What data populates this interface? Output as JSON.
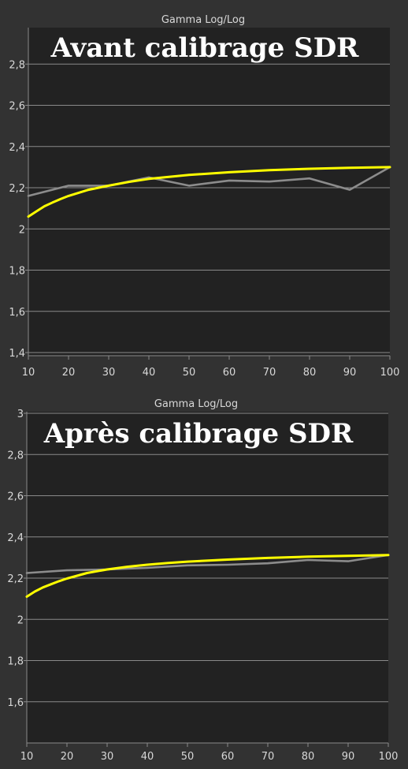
{
  "colors": {
    "background": "#323232",
    "plot_background": "#222222",
    "grid": "#8a8a8a",
    "target_curve": "#ffff00",
    "measured_curve": "#8c8c8c",
    "text": "#d8d8d8",
    "overlay_title": "#ffffff"
  },
  "chart_data": [
    {
      "type": "line",
      "title": "Gamma Log/Log",
      "overlay_title": "Avant calibrage SDR",
      "xlim": [
        10,
        100
      ],
      "ylim": [
        1.4,
        3.0
      ],
      "x_ticks": [
        10,
        20,
        30,
        40,
        50,
        60,
        70,
        80,
        90,
        100
      ],
      "x_tick_labels": [
        "10",
        "20",
        "30",
        "40",
        "50",
        "60",
        "70",
        "80",
        "90",
        "100"
      ],
      "y_ticks": [
        1.4,
        1.6,
        1.8,
        2.0,
        2.2,
        2.4,
        2.6,
        2.8
      ],
      "y_tick_labels": [
        "1,4",
        "1,6",
        "1,8",
        "2",
        "2,2",
        "2,4",
        "2,6",
        "2,8"
      ],
      "grid": true,
      "series": [
        {
          "role": "target",
          "x": [
            10,
            12,
            14,
            16,
            18,
            20,
            25,
            30,
            35,
            40,
            45,
            50,
            60,
            70,
            80,
            90,
            100
          ],
          "values": [
            2.06,
            2.085,
            2.11,
            2.128,
            2.145,
            2.16,
            2.19,
            2.21,
            2.228,
            2.243,
            2.253,
            2.262,
            2.275,
            2.285,
            2.292,
            2.297,
            2.3
          ]
        },
        {
          "role": "measured",
          "x": [
            10,
            20,
            30,
            40,
            50,
            60,
            70,
            80,
            90,
            100
          ],
          "values": [
            2.16,
            2.21,
            2.21,
            2.25,
            2.21,
            2.235,
            2.23,
            2.245,
            2.19,
            2.3
          ]
        }
      ]
    },
    {
      "type": "line",
      "title": "Gamma Log/Log",
      "overlay_title": "Après calibrage SDR",
      "xlim": [
        10,
        100
      ],
      "ylim": [
        1.4,
        3.0
      ],
      "x_ticks": [
        10,
        20,
        30,
        40,
        50,
        60,
        70,
        80,
        90,
        100
      ],
      "x_tick_labels": [
        "10",
        "20",
        "30",
        "40",
        "50",
        "60",
        "70",
        "80",
        "90",
        "100"
      ],
      "y_ticks": [
        1.6,
        1.8,
        2.0,
        2.2,
        2.4,
        2.6,
        2.8,
        3.0
      ],
      "y_tick_labels": [
        "1,6",
        "1,8",
        "2",
        "2,2",
        "2,4",
        "2,6",
        "2,8",
        "3"
      ],
      "grid": true,
      "series": [
        {
          "role": "target",
          "x": [
            10,
            12,
            14,
            16,
            18,
            20,
            25,
            30,
            35,
            40,
            45,
            50,
            60,
            70,
            80,
            90,
            100
          ],
          "values": [
            2.11,
            2.135,
            2.155,
            2.17,
            2.185,
            2.198,
            2.225,
            2.242,
            2.255,
            2.265,
            2.273,
            2.28,
            2.29,
            2.298,
            2.304,
            2.308,
            2.312
          ]
        },
        {
          "role": "measured",
          "x": [
            10,
            20,
            30,
            40,
            50,
            60,
            70,
            80,
            90,
            100
          ],
          "values": [
            2.225,
            2.238,
            2.242,
            2.25,
            2.262,
            2.265,
            2.272,
            2.288,
            2.282,
            2.312
          ]
        }
      ]
    }
  ]
}
